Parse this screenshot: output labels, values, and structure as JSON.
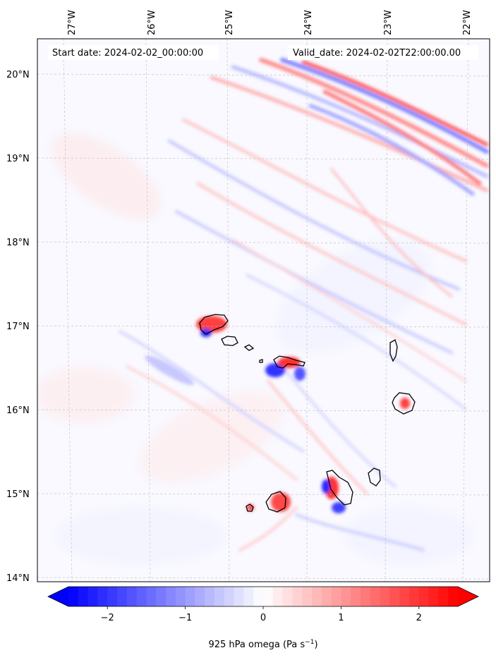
{
  "map": {
    "start_date_label": "Start date: 2024-02-02_00:00:00",
    "valid_date_label": "Valid_date: 2024-02-02T22:00:00.00",
    "lon_ticks": [
      "27°W",
      "26°W",
      "25°W",
      "24°W",
      "23°W",
      "22°W"
    ],
    "lat_ticks": [
      "20°N",
      "19°N",
      "18°N",
      "17°N",
      "16°N",
      "15°N",
      "14°N"
    ],
    "lon_values": [
      -27,
      -26,
      -25,
      -24,
      -23,
      -22
    ],
    "lat_values": [
      20,
      19,
      18,
      17,
      16,
      15,
      14
    ],
    "colorbar": {
      "label_main": "925 hPa omega (Pa s",
      "label_sup": "−1",
      "label_end": ")",
      "ticks": [
        "−2",
        "−1",
        "0",
        "1",
        "2"
      ],
      "tick_values": [
        -2,
        -1,
        0,
        1,
        2
      ],
      "vmin": -2.5,
      "vmax": 2.5,
      "colormap": "bwr",
      "low_color": "#0000ff",
      "mid_color": "#ffffff",
      "high_color": "#ff0000",
      "extend": "both"
    },
    "grid": true,
    "islands": [
      "Santo Antão",
      "São Vicente",
      "Santa Luzia",
      "São Nicolau",
      "Sal",
      "Boa Vista",
      "Maio",
      "Santiago",
      "Fogo",
      "Brava"
    ]
  }
}
